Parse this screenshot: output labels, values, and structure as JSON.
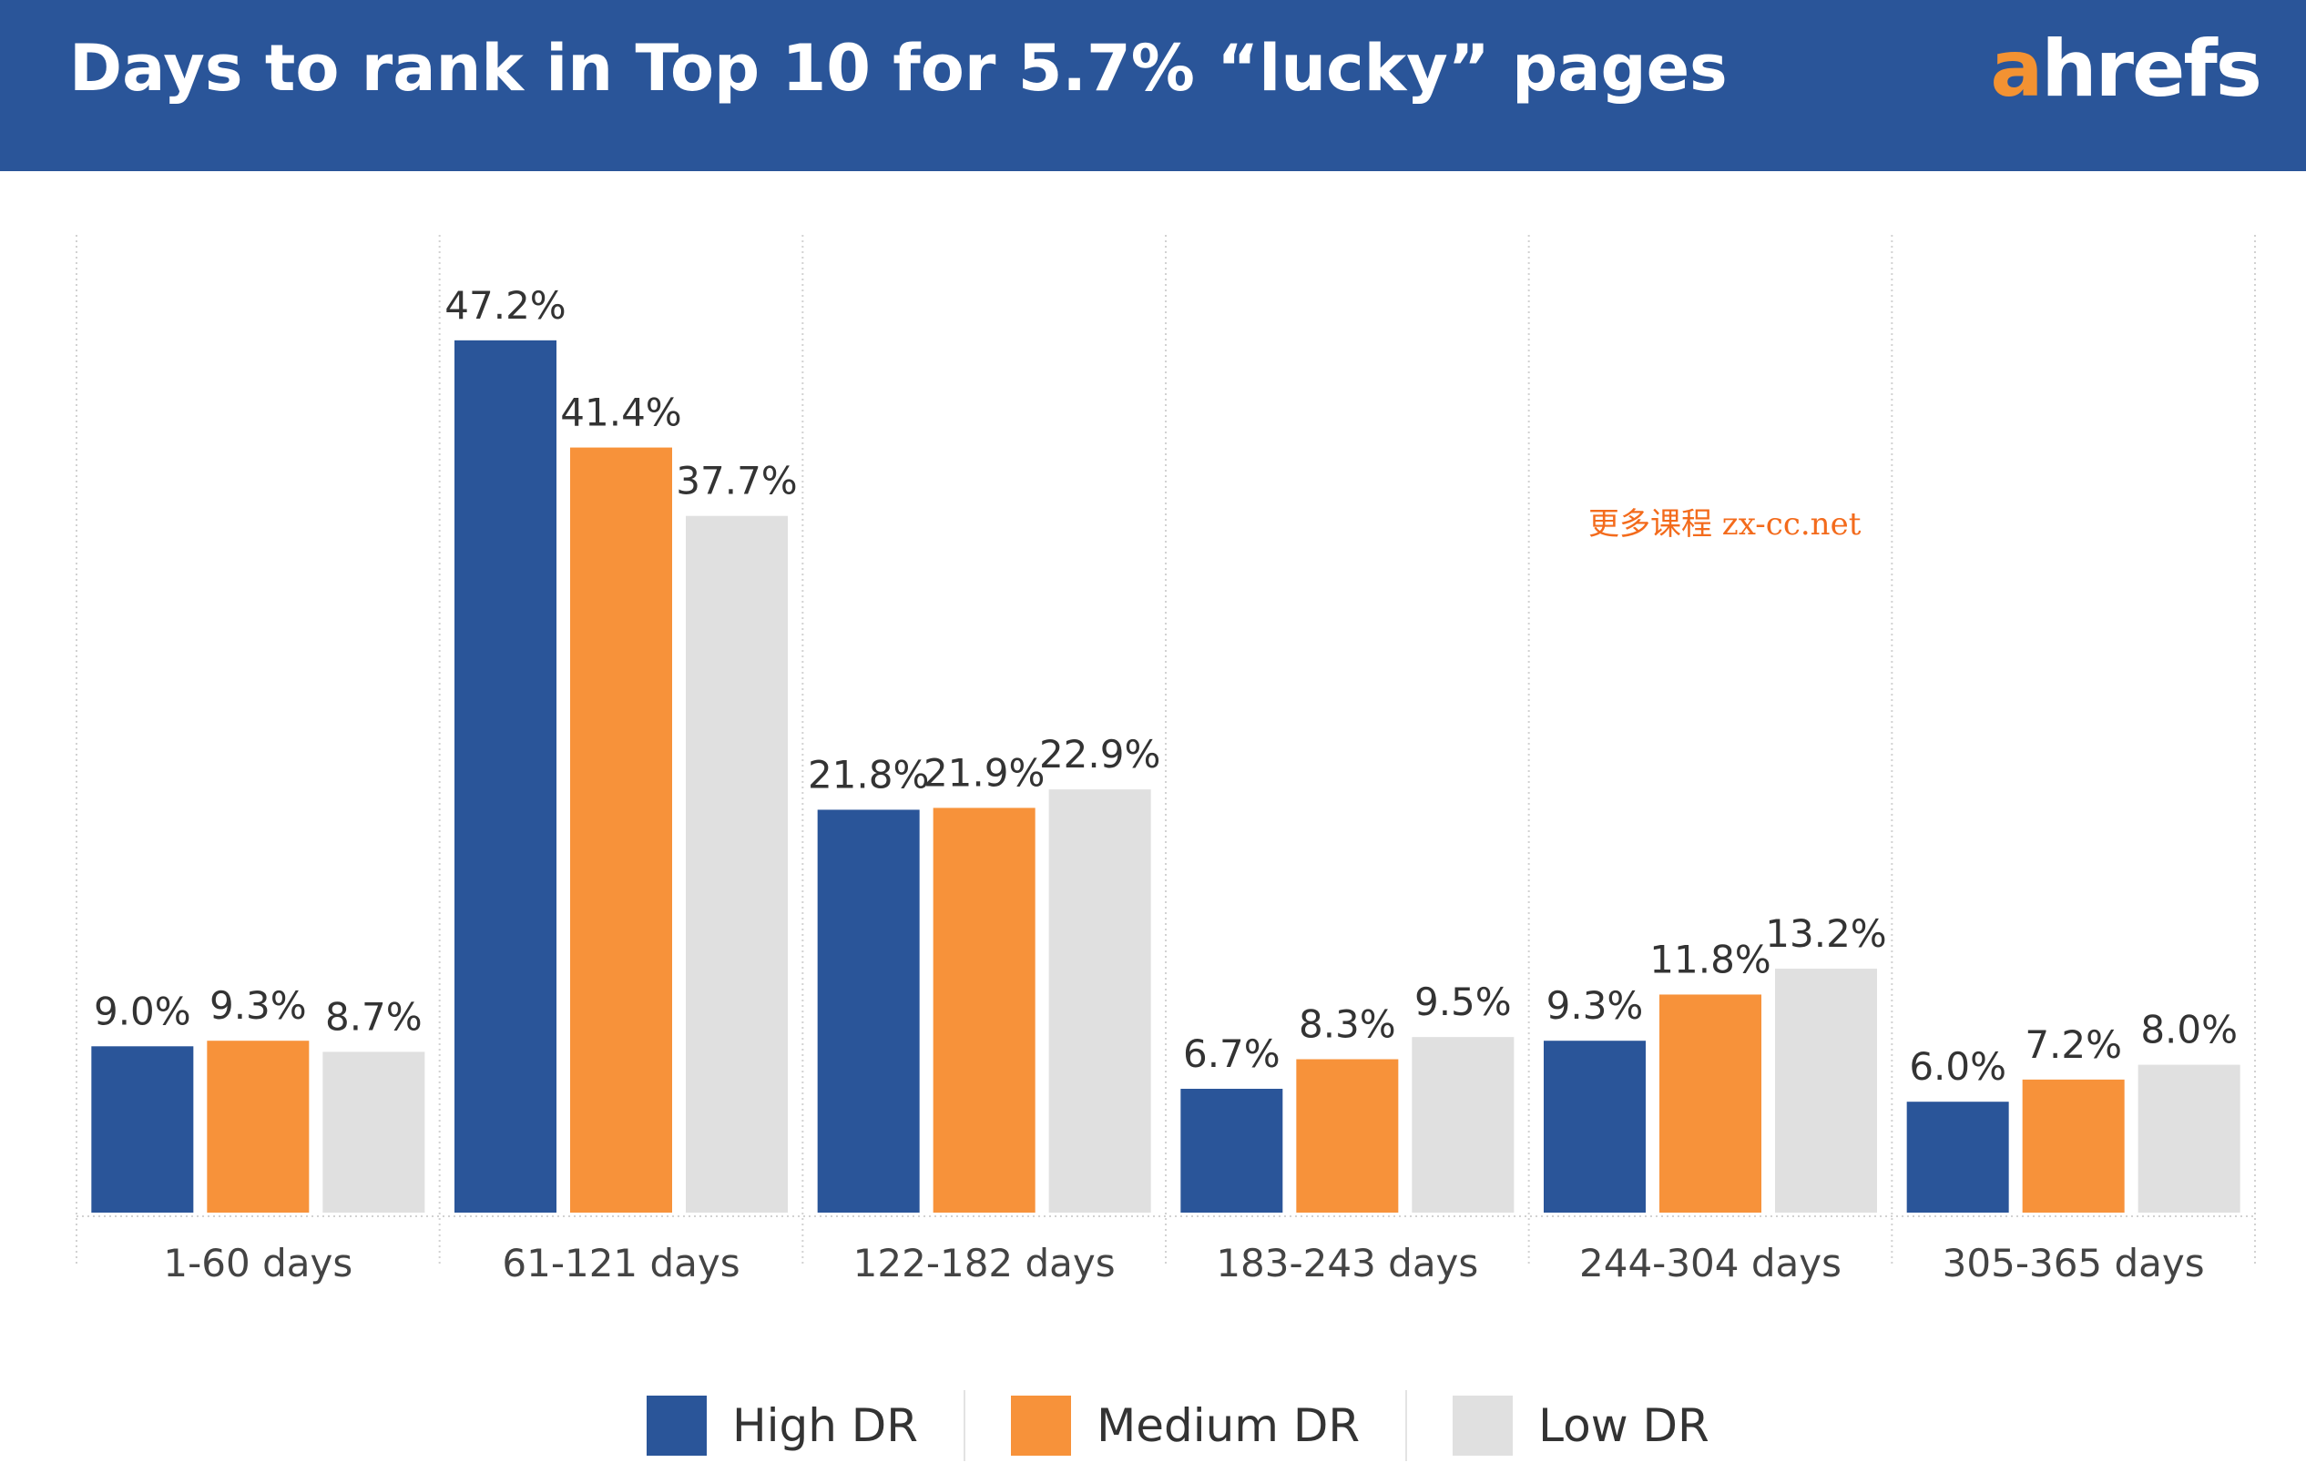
{
  "header": {
    "title": "Days to rank in Top 10 for 5.7% “lucky” pages",
    "logo_first": "a",
    "logo_rest": "hrefs"
  },
  "colors": {
    "header_bg": "#2a5599",
    "high": "#2a5599",
    "medium": "#f7923a",
    "low": "#e0e0e0",
    "logo_accent": "#f39232"
  },
  "watermark": "更多课程 zx-cc.net",
  "chart_data": {
    "type": "bar",
    "title": "Days to rank in Top 10 for 5.7% “lucky” pages",
    "xlabel": "",
    "ylabel": "",
    "categories": [
      "1-60 days",
      "61-121 days",
      "122-182 days",
      "183-243 days",
      "244-304 days",
      "305-365 days"
    ],
    "series": [
      {
        "name": "High DR",
        "values": [
          9.0,
          47.2,
          21.8,
          6.7,
          9.3,
          6.0
        ],
        "labels": [
          "9.0%",
          "47.2%",
          "21.8%",
          "6.7%",
          "9.3%",
          "6.0%"
        ]
      },
      {
        "name": "Medium DR",
        "values": [
          9.3,
          41.4,
          21.9,
          8.3,
          11.8,
          7.2
        ],
        "labels": [
          "9.3%",
          "41.4%",
          "21.9%",
          "8.3%",
          "11.8%",
          "7.2%"
        ]
      },
      {
        "name": "Low DR",
        "values": [
          8.7,
          37.7,
          22.9,
          9.5,
          13.2,
          8.0
        ],
        "labels": [
          "8.7%",
          "37.7%",
          "22.9%",
          "9.5%",
          "13.2%",
          "8.0%"
        ]
      }
    ],
    "legend_position": "bottom",
    "grid": "vertical dotted category separators"
  }
}
